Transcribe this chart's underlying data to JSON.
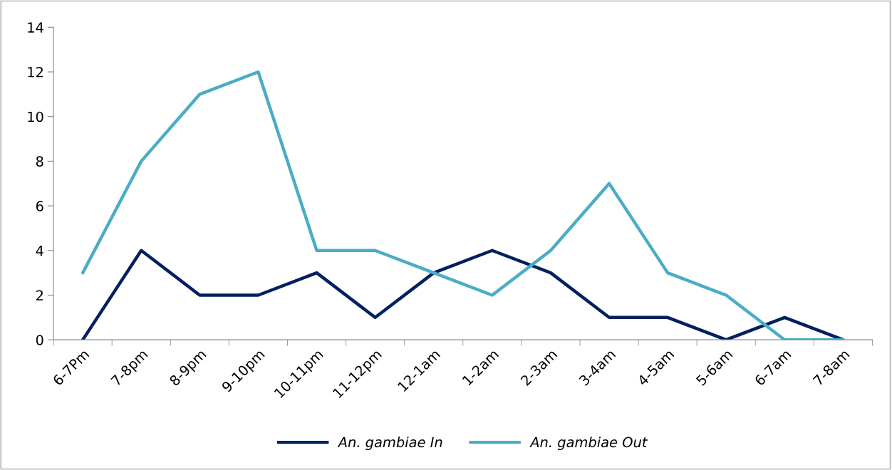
{
  "chart_data": {
    "type": "line",
    "categories": [
      "6-7Pm",
      "7-8pm",
      "8-9pm",
      "9-10pm",
      "10-11pm",
      "11-12pm",
      "12-1am",
      "1-2am",
      "2-3am",
      "3-4am",
      "4-5am",
      "5-6am",
      "6-7am",
      "7-8am"
    ],
    "series": [
      {
        "name": "An. gambiae In",
        "color": "#002060",
        "values": [
          0,
          4,
          2,
          2,
          3,
          1,
          3,
          4,
          3,
          1,
          1,
          0,
          1,
          0
        ]
      },
      {
        "name": "An. gambiae Out",
        "color": "#4bacc6",
        "values": [
          3,
          8,
          11,
          12,
          4,
          4,
          3,
          2,
          4,
          7,
          3,
          2,
          0,
          0
        ]
      }
    ],
    "ylim": [
      0,
      14
    ],
    "yticks": [
      0,
      2,
      4,
      6,
      8,
      10,
      12,
      14
    ],
    "grid": false,
    "legend": "bottom",
    "marker": "none",
    "line_style": "solid"
  }
}
